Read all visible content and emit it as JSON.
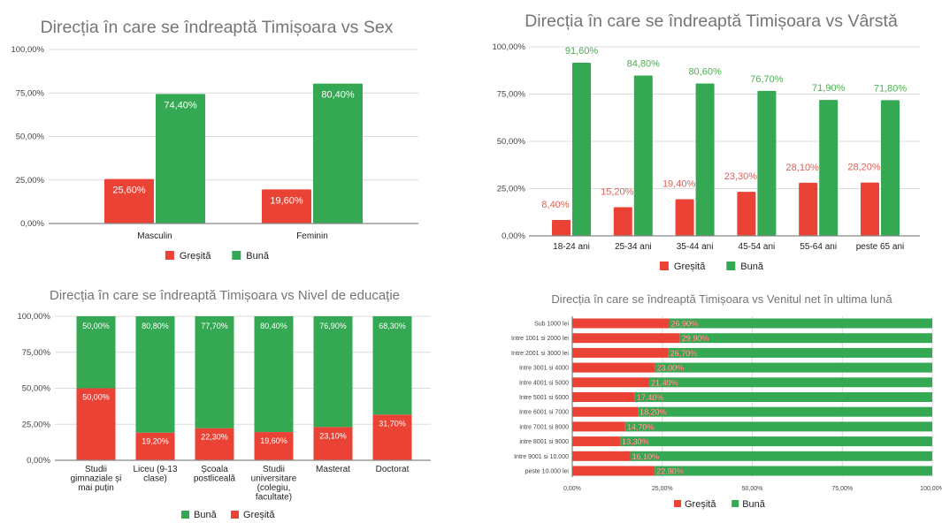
{
  "colors": {
    "gresita": "#ea4335",
    "buna": "#34a853",
    "label_red": "#e06055",
    "label_green": "#4caf50"
  },
  "chart_data": [
    {
      "id": "sex",
      "type": "bar",
      "title": "Direcția în care se îndreaptă Timișoara vs Sex",
      "categories": [
        "Masculin",
        "Feminin"
      ],
      "series": [
        {
          "name": "Greșită",
          "values": [
            25.6,
            19.6
          ],
          "labels": [
            "25,60%",
            "19,60%"
          ]
        },
        {
          "name": "Bună",
          "values": [
            74.4,
            80.4
          ],
          "labels": [
            "74,40%",
            "80,40%"
          ]
        }
      ],
      "yticks": [
        "0,00%",
        "25,00%",
        "50,00%",
        "75,00%",
        "100,00%"
      ],
      "ylim": [
        0,
        100
      ],
      "legend": [
        "Greșită",
        "Bună"
      ],
      "legend_position": "bottom",
      "grid": true
    },
    {
      "id": "age",
      "type": "bar",
      "title": "Direcția în care se îndreaptă Timișoara vs Vârstă",
      "categories": [
        "18-24 ani",
        "25-34 ani",
        "35-44 ani",
        "45-54 ani",
        "55-64 ani",
        "peste 65 ani"
      ],
      "series": [
        {
          "name": "Greșită",
          "values": [
            8.4,
            15.2,
            19.4,
            23.3,
            28.1,
            28.2
          ],
          "labels": [
            "8,40%",
            "15,20%",
            "19,40%",
            "23,30%",
            "28,10%",
            "28,20%"
          ]
        },
        {
          "name": "Bună",
          "values": [
            91.6,
            84.8,
            80.6,
            76.7,
            71.9,
            71.8
          ],
          "labels": [
            "91,60%",
            "84,80%",
            "80,60%",
            "76,70%",
            "71,90%",
            "71,80%"
          ]
        }
      ],
      "yticks": [
        "0,00%",
        "25,00%",
        "50,00%",
        "75,00%",
        "100,00%"
      ],
      "ylim": [
        0,
        100
      ],
      "legend": [
        "Greșită",
        "Bună"
      ],
      "legend_position": "bottom",
      "grid": true
    },
    {
      "id": "education",
      "type": "bar",
      "stacked": true,
      "title": "Direcția în care se îndreaptă Timișoara vs Nivel de educație",
      "categories": [
        [
          "Studii",
          "gimnaziale și",
          "mai puțin"
        ],
        [
          "Liceu (9-13",
          "clase)"
        ],
        [
          "Școala",
          "postliceală"
        ],
        [
          "Studii",
          "universitare",
          "(colegiu,",
          "facultate)"
        ],
        [
          "Masterat"
        ],
        [
          "Doctorat"
        ]
      ],
      "series": [
        {
          "name": "Greșită",
          "values": [
            50.0,
            19.2,
            22.3,
            19.6,
            23.1,
            31.7
          ],
          "labels": [
            "50,00%",
            "19,20%",
            "22,30%",
            "19,60%",
            "23,10%",
            "31,70%"
          ]
        },
        {
          "name": "Bună",
          "values": [
            50.0,
            80.8,
            77.7,
            80.4,
            76.9,
            68.3
          ],
          "labels": [
            "50,00%",
            "80,80%",
            "77,70%",
            "80,40%",
            "76,90%",
            "68,30%"
          ]
        }
      ],
      "yticks": [
        "0,00%",
        "25,00%",
        "50,00%",
        "75,00%",
        "100,00%"
      ],
      "ylim": [
        0,
        100
      ],
      "legend": [
        "Bună",
        "Greșită"
      ],
      "legend_position": "bottom",
      "grid": true
    },
    {
      "id": "income",
      "type": "bar",
      "orientation": "horizontal",
      "stacked": true,
      "title": "Direcția în care se îndreaptă Timișoara vs Venitul net în ultima lună",
      "categories": [
        "Sub 1000 lei",
        "Intre 1001 si 2000 lei",
        "Intre 2001 si 3000 lei",
        "Intre 3001 si 4000",
        "Intre 4001 si 5000",
        "Intre 5001 si 6000",
        "Intre 6001 si 7000",
        "intre 7001 si 8000",
        "intre 8001 si 9000",
        "Intre 9001 si 10.000",
        "peste 10.000 lei"
      ],
      "series": [
        {
          "name": "Greșită",
          "values": [
            26.9,
            29.9,
            26.7,
            23.0,
            21.4,
            17.4,
            18.2,
            14.7,
            13.3,
            16.1,
            22.9
          ],
          "labels": [
            "26,90%",
            "29,90%",
            "26,70%",
            "23,00%",
            "21,40%",
            "17,40%",
            "18,20%",
            "14,70%",
            "13,30%",
            "16,10%",
            "22,90%"
          ]
        },
        {
          "name": "Bună",
          "values": [
            73.1,
            70.1,
            73.3,
            77.0,
            78.6,
            82.6,
            81.8,
            85.3,
            86.7,
            83.9,
            77.1
          ]
        }
      ],
      "xticks": [
        "0,00%",
        "25,00%",
        "50,00%",
        "75,00%",
        "100,00%"
      ],
      "xlim": [
        0,
        100
      ],
      "legend": [
        "Greșită",
        "Bună"
      ],
      "legend_position": "bottom",
      "grid": true
    }
  ]
}
